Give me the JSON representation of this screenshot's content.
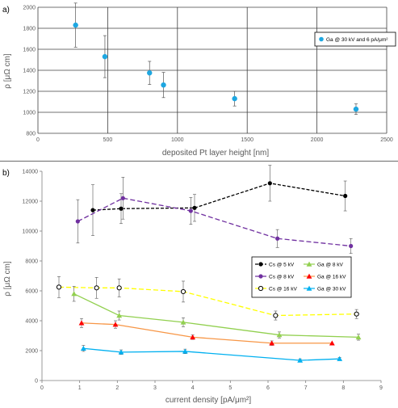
{
  "chart_data": [
    {
      "type": "scatter",
      "panel_label": "a)",
      "xlabel": "deposited Pt layer height [nm]",
      "ylabel": "ρ [μΩ cm]",
      "xlim": [
        0,
        2500
      ],
      "ylim": [
        800,
        2000
      ],
      "xticks": [
        "0",
        "500",
        "1000",
        "1500",
        "2000",
        "2500"
      ],
      "yticks": [
        "800",
        "1000",
        "1200",
        "1400",
        "1600",
        "1800",
        "2000"
      ],
      "grid": true,
      "legend_position": "right",
      "series": [
        {
          "name": "Ga @ 30 kV and 6 pA/μm²",
          "color": "#1ea7e1",
          "marker": "circle",
          "points": [
            {
              "x": 270,
              "y": 1830,
              "err": 210
            },
            {
              "x": 480,
              "y": 1530,
              "err": 200
            },
            {
              "x": 800,
              "y": 1375,
              "err": 110
            },
            {
              "x": 900,
              "y": 1260,
              "err": 120
            },
            {
              "x": 1410,
              "y": 1130,
              "err": 70
            },
            {
              "x": 2280,
              "y": 1030,
              "err": 50
            }
          ]
        }
      ]
    },
    {
      "type": "line",
      "panel_label": "b)",
      "xlabel": "current density [pA/μm²]",
      "ylabel": "ρ [μΩ cm]",
      "xlim": [
        0,
        9
      ],
      "ylim": [
        0,
        14000
      ],
      "xticks": [
        "0",
        "1",
        "2",
        "3",
        "4",
        "5",
        "6",
        "7",
        "8",
        "9"
      ],
      "yticks": [
        "0",
        "2000",
        "4000",
        "6000",
        "8000",
        "10000",
        "12000",
        "14000"
      ],
      "grid": false,
      "legend_position": "center-right",
      "series": [
        {
          "name": "Cs @ 5 kV",
          "color": "#000000",
          "line_color": "#000000",
          "dash": "4,2",
          "marker": "circle-filled",
          "points": [
            {
              "x": 1.35,
              "y": 11400,
              "err": 1700
            },
            {
              "x": 2.1,
              "y": 11500,
              "err": 1000
            },
            {
              "x": 4.05,
              "y": 11550,
              "err": 900
            },
            {
              "x": 6.05,
              "y": 13200,
              "err": 1200
            },
            {
              "x": 8.05,
              "y": 12350,
              "err": 1000
            }
          ]
        },
        {
          "name": "Cs @ 8 kV",
          "color": "#7030a0",
          "line_color": "#7030a0",
          "dash": "6,3",
          "marker": "circle-filled",
          "points": [
            {
              "x": 0.95,
              "y": 10650,
              "err": 1450
            },
            {
              "x": 2.15,
              "y": 12200,
              "err": 1400
            },
            {
              "x": 3.95,
              "y": 11350,
              "err": 900
            },
            {
              "x": 6.25,
              "y": 9500,
              "err": 600
            },
            {
              "x": 8.2,
              "y": 9000,
              "err": 500
            }
          ]
        },
        {
          "name": "Cs @ 16 kV",
          "color": "#ffff00",
          "line_color": "#ffff00",
          "dash": "6,3",
          "marker": "circle-open",
          "points": [
            {
              "x": 0.45,
              "y": 6250,
              "err": 700
            },
            {
              "x": 1.45,
              "y": 6200,
              "err": 700
            },
            {
              "x": 2.05,
              "y": 6200,
              "err": 600
            },
            {
              "x": 3.75,
              "y": 5950,
              "err": 700
            },
            {
              "x": 6.2,
              "y": 4350,
              "err": 300
            },
            {
              "x": 8.35,
              "y": 4450,
              "err": 300
            }
          ]
        },
        {
          "name": "Ga @ 8 kV",
          "color": "#92d050",
          "line_color": "#92d050",
          "dash": "",
          "marker": "triangle",
          "points": [
            {
              "x": 0.85,
              "y": 5800,
              "err": 500
            },
            {
              "x": 2.05,
              "y": 4350,
              "err": 300
            },
            {
              "x": 3.75,
              "y": 3900,
              "err": 300
            },
            {
              "x": 6.3,
              "y": 3050,
              "err": 200
            },
            {
              "x": 8.4,
              "y": 2900,
              "err": 200
            }
          ]
        },
        {
          "name": "Ga @ 16 kV",
          "color": "#ff0000",
          "line_color": "#f79646",
          "dash": "",
          "marker": "triangle",
          "points": [
            {
              "x": 1.05,
              "y": 3850,
              "err": 300
            },
            {
              "x": 1.95,
              "y": 3750,
              "err": 250
            },
            {
              "x": 4.0,
              "y": 2900,
              "err": 150
            },
            {
              "x": 6.1,
              "y": 2500,
              "err": 150
            },
            {
              "x": 7.7,
              "y": 2500,
              "err": 0
            }
          ]
        },
        {
          "name": "Ga @ 30 kV",
          "color": "#00b0f0",
          "line_color": "#00b0f0",
          "dash": "",
          "marker": "triangle",
          "points": [
            {
              "x": 1.1,
              "y": 2150,
              "err": 200
            },
            {
              "x": 2.1,
              "y": 1900,
              "err": 150
            },
            {
              "x": 3.8,
              "y": 1950,
              "err": 150
            },
            {
              "x": 6.85,
              "y": 1350,
              "err": 100
            },
            {
              "x": 7.9,
              "y": 1450,
              "err": 100
            }
          ]
        }
      ]
    }
  ]
}
